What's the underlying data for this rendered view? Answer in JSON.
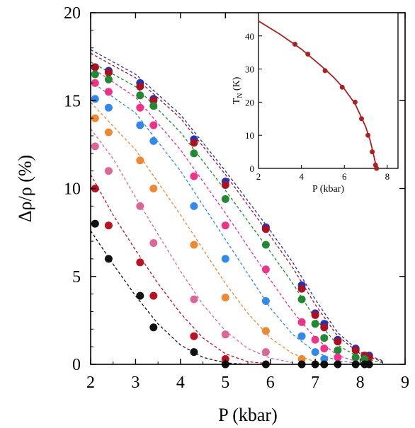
{
  "chart_data": [
    {
      "type": "scatter",
      "title": "",
      "xlabel": "P (kbar)",
      "ylabel": "Δρ/ρ (%)",
      "xlim": [
        2,
        9
      ],
      "ylim": [
        0,
        20
      ],
      "xticks": [
        "2",
        "3",
        "4",
        "5",
        "6",
        "7",
        "8",
        "9"
      ],
      "yticks": [
        "0",
        "5",
        "10",
        "15",
        "20"
      ],
      "grid": false,
      "series": [
        {
          "color": "#2233bb",
          "x": [
            2.1,
            2.4,
            3.1,
            3.4,
            4.3,
            5.0,
            5.9,
            6.7,
            7.0,
            7.2,
            7.5,
            7.9,
            8.1,
            8.2
          ],
          "y": [
            16.9,
            16.7,
            16.0,
            15.1,
            12.8,
            10.4,
            7.8,
            4.5,
            2.9,
            2.3,
            1.4,
            0.9,
            0.5,
            0.5
          ],
          "fit": [
            [
              2.0,
              17.9
            ],
            [
              3.0,
              16.5
            ],
            [
              4.0,
              14.2
            ],
            [
              5.0,
              11.0
            ],
            [
              6.0,
              7.6
            ],
            [
              6.5,
              5.8
            ],
            [
              7.0,
              3.7
            ],
            [
              7.5,
              1.8
            ],
            [
              8.0,
              0.7
            ],
            [
              8.5,
              0.2
            ]
          ]
        },
        {
          "color": "#aa1122",
          "x": [
            2.1,
            2.4,
            3.1,
            3.4,
            4.3,
            5.0,
            5.9,
            6.7,
            7.0,
            7.2,
            7.5,
            7.9,
            8.1,
            8.2
          ],
          "y": [
            16.9,
            16.6,
            15.8,
            15.0,
            12.6,
            10.2,
            7.7,
            4.3,
            2.8,
            2.1,
            1.3,
            0.8,
            0.5,
            0.4
          ],
          "fit": [
            [
              2.0,
              17.7
            ],
            [
              3.0,
              16.3
            ],
            [
              4.0,
              14.0
            ],
            [
              5.0,
              10.8
            ],
            [
              6.0,
              7.3
            ],
            [
              6.5,
              5.5
            ],
            [
              7.0,
              3.4
            ],
            [
              7.5,
              1.6
            ],
            [
              8.0,
              0.6
            ],
            [
              8.5,
              0.15
            ]
          ]
        },
        {
          "color": "#228833",
          "x": [
            2.1,
            2.4,
            3.1,
            3.4,
            4.3,
            5.0,
            5.9,
            6.7,
            7.0,
            7.2,
            7.5,
            7.9,
            8.1
          ],
          "y": [
            16.5,
            16.2,
            15.3,
            14.7,
            12.0,
            9.4,
            6.8,
            3.7,
            2.3,
            1.5,
            0.8,
            0.4,
            0.3
          ],
          "fit": [
            [
              2.0,
              17.2
            ],
            [
              3.0,
              15.8
            ],
            [
              4.0,
              13.2
            ],
            [
              5.0,
              9.9
            ],
            [
              6.0,
              6.4
            ],
            [
              6.5,
              4.6
            ],
            [
              7.0,
              2.6
            ],
            [
              7.5,
              1.1
            ],
            [
              8.0,
              0.35
            ],
            [
              8.5,
              0.1
            ]
          ]
        },
        {
          "color": "#ee3388",
          "x": [
            2.1,
            2.4,
            3.1,
            3.4,
            4.3,
            5.0,
            5.9,
            6.7,
            7.0,
            7.2,
            7.5
          ],
          "y": [
            16.0,
            15.5,
            14.6,
            13.6,
            10.7,
            7.9,
            5.4,
            2.4,
            1.4,
            0.9,
            0.4
          ],
          "fit": [
            [
              2.0,
              16.9
            ],
            [
              3.0,
              15.2
            ],
            [
              4.0,
              12.2
            ],
            [
              5.0,
              8.6
            ],
            [
              6.0,
              4.8
            ],
            [
              6.5,
              3.0
            ],
            [
              7.0,
              1.5
            ],
            [
              7.5,
              0.5
            ],
            [
              8.0,
              0.1
            ]
          ]
        },
        {
          "color": "#3388ee",
          "x": [
            2.1,
            2.4,
            3.1,
            3.4,
            4.3,
            5.0,
            5.9,
            6.7,
            7.0,
            7.2
          ],
          "y": [
            15.1,
            14.6,
            13.6,
            12.7,
            9.0,
            6.0,
            3.6,
            1.6,
            0.7,
            0.3
          ],
          "fit": [
            [
              2.0,
              16.1
            ],
            [
              3.0,
              14.3
            ],
            [
              4.0,
              11.0
            ],
            [
              5.0,
              7.1
            ],
            [
              6.0,
              3.2
            ],
            [
              6.5,
              1.7
            ],
            [
              7.0,
              0.7
            ],
            [
              7.5,
              0.2
            ],
            [
              8.0,
              0.05
            ]
          ]
        },
        {
          "color": "#ee8833",
          "x": [
            2.1,
            2.4,
            3.1,
            3.4,
            4.3,
            5.0,
            5.9,
            6.7
          ],
          "y": [
            14.0,
            13.2,
            11.6,
            10.0,
            6.8,
            3.8,
            1.9,
            0.3
          ],
          "fit": [
            [
              2.0,
              14.9
            ],
            [
              3.0,
              12.2
            ],
            [
              4.0,
              8.5
            ],
            [
              5.0,
              4.6
            ],
            [
              5.5,
              2.9
            ],
            [
              6.0,
              1.5
            ],
            [
              6.5,
              0.6
            ],
            [
              7.0,
              0.15
            ]
          ]
        },
        {
          "color": "#dd6699",
          "x": [
            2.1,
            2.4,
            3.1,
            3.4,
            4.3,
            5.0,
            5.9
          ],
          "y": [
            12.4,
            11.0,
            9.0,
            6.9,
            3.7,
            1.7,
            0.7
          ],
          "fit": [
            [
              2.0,
              13.4
            ],
            [
              2.5,
              11.7
            ],
            [
              3.0,
              9.5
            ],
            [
              3.5,
              7.4
            ],
            [
              4.0,
              5.3
            ],
            [
              4.5,
              3.4
            ],
            [
              5.0,
              1.9
            ],
            [
              5.5,
              0.9
            ],
            [
              6.0,
              0.35
            ],
            [
              6.5,
              0.1
            ]
          ]
        },
        {
          "color": "#bb1122",
          "x": [
            2.1,
            2.4,
            3.1,
            3.4,
            4.3,
            5.0
          ],
          "y": [
            10.0,
            7.9,
            5.8,
            3.9,
            1.6,
            0.3
          ],
          "fit": [
            [
              2.0,
              10.8
            ],
            [
              2.5,
              8.5
            ],
            [
              3.0,
              6.5
            ],
            [
              3.5,
              4.6
            ],
            [
              4.0,
              2.9
            ],
            [
              4.5,
              1.5
            ],
            [
              5.0,
              0.6
            ],
            [
              5.5,
              0.15
            ],
            [
              6.0,
              0.03
            ]
          ]
        },
        {
          "color": "#111111",
          "x": [
            2.1,
            2.4,
            3.1,
            3.4,
            4.3,
            5.0,
            5.9,
            6.7,
            7.0,
            7.2,
            7.5,
            7.9,
            8.1,
            8.2
          ],
          "y": [
            8.0,
            6.0,
            3.9,
            2.1,
            0.7,
            0.0,
            0.0,
            0.0,
            0.0,
            0.0,
            0.0,
            0.0,
            0.0,
            0.0
          ],
          "fit": [
            [
              2.0,
              7.6
            ],
            [
              2.5,
              5.7
            ],
            [
              3.0,
              3.9
            ],
            [
              3.5,
              2.3
            ],
            [
              4.0,
              1.1
            ],
            [
              4.5,
              0.4
            ],
            [
              5.0,
              0.08
            ],
            [
              5.5,
              0.0
            ]
          ]
        }
      ]
    },
    {
      "type": "line",
      "title": "",
      "xlabel": "P (kbar)",
      "ylabel": "T_N (K)",
      "xlim": [
        2,
        8.5
      ],
      "ylim": [
        0,
        47
      ],
      "xticks": [
        "2",
        "4",
        "6",
        "8"
      ],
      "yticks": [
        "0",
        "10",
        "20",
        "30",
        "40"
      ],
      "series": [
        {
          "color": "#aa2222",
          "x": [
            3.7,
            4.3,
            5.1,
            5.9,
            6.5,
            6.8,
            7.1,
            7.3,
            7.45,
            7.5
          ],
          "y": [
            37.5,
            34.5,
            29.5,
            24.5,
            20.0,
            15.0,
            10.0,
            5.0,
            1.0,
            0.0
          ],
          "curve": [
            [
              2.0,
              44.5
            ],
            [
              3.0,
              40.5
            ],
            [
              4.0,
              36.0
            ],
            [
              5.0,
              30.5
            ],
            [
              5.5,
              27.5
            ],
            [
              6.0,
              24.0
            ],
            [
              6.5,
              19.5
            ],
            [
              7.0,
              12.5
            ],
            [
              7.2,
              8.5
            ],
            [
              7.35,
              4.5
            ],
            [
              7.45,
              1.5
            ],
            [
              7.5,
              0.0
            ]
          ]
        }
      ]
    }
  ]
}
